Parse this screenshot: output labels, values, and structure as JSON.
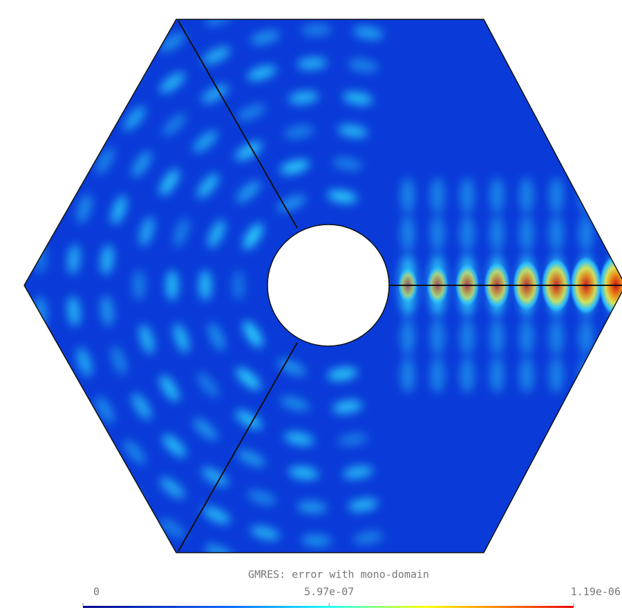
{
  "chart_data": {
    "type": "heatmap",
    "title": "GMRES: error with mono-domain",
    "clim": [
      0,
      1.19e-06
    ],
    "cticks": [
      0,
      {
        "value": 5.97e-07,
        "label": "5.97e-07"
      },
      {
        "value": 1.19e-06,
        "label": "1.19e-06"
      }
    ]
  }
}
